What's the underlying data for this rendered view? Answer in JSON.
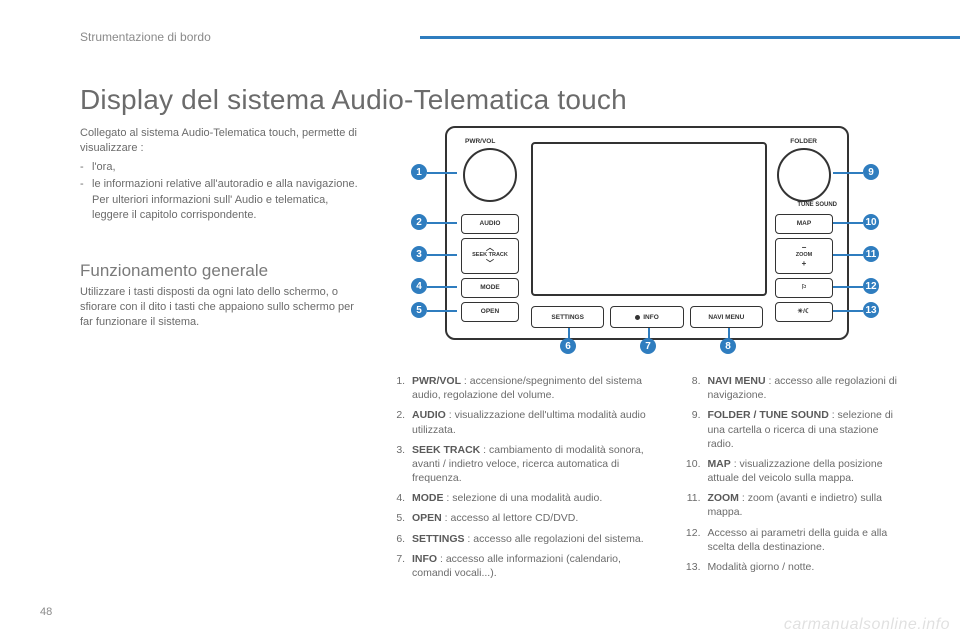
{
  "section_label": "Strumentazione di bordo",
  "page_number": "48",
  "watermark": "carmanualsonline.info",
  "title": "Display del sistema Audio-Telematica touch",
  "intro": {
    "lead": "Collegato al sistema Audio-Telematica touch, permette di visualizzare :",
    "bullets": [
      "l'ora,",
      "le informazioni relative all'autoradio e alla navigazione."
    ],
    "note": "Per ulteriori informazioni sull' Audio e telematica, leggere il capitolo corrispondente."
  },
  "sub": {
    "heading": "Funzionamento generale",
    "body": "Utilizzare i tasti disposti da ogni lato dello schermo, o sfiorare con il dito i tasti che appaiono sullo schermo per far funzionare il sistema."
  },
  "device": {
    "knob_left_label": "PWR/VOL",
    "knob_right_label": "FOLDER",
    "tune_label": "TUNE SOUND",
    "left_buttons": {
      "audio": "AUDIO",
      "seek_up": "︿",
      "seek_label": "SEEK TRACK",
      "seek_down": "﹀",
      "mode": "MODE",
      "open": "OPEN"
    },
    "right_buttons": {
      "map": "MAP",
      "zoom_minus": "−",
      "zoom_label": "ZOOM",
      "zoom_plus": "+",
      "guide": "⚐",
      "daynight": "☀/☾"
    },
    "bottom_buttons": {
      "settings": "SETTINGS",
      "info": "INFO",
      "navi": "NAVI MENU"
    },
    "callouts": [
      "1",
      "2",
      "3",
      "4",
      "5",
      "6",
      "7",
      "8",
      "9",
      "10",
      "11",
      "12",
      "13"
    ],
    "accent_color": "#2f7dbf"
  },
  "legend_left": [
    {
      "n": "1",
      "label": "PWR/VOL",
      "text": " : accensione/spegnimento del sistema audio, regolazione del volume."
    },
    {
      "n": "2",
      "label": "AUDIO",
      "text": " : visualizzazione dell'ultima modalità audio utilizzata."
    },
    {
      "n": "3",
      "label": "SEEK TRACK",
      "text": " : cambiamento di modalità sonora, avanti / indietro veloce, ricerca automatica di frequenza."
    },
    {
      "n": "4",
      "label": "MODE",
      "text": " : selezione di una modalità audio."
    },
    {
      "n": "5",
      "label": "OPEN",
      "text": " : accesso al lettore CD/DVD."
    },
    {
      "n": "6",
      "label": "SETTINGS",
      "text": " : accesso alle regolazioni del sistema."
    },
    {
      "n": "7",
      "label": "INFO",
      "text": " : accesso alle informazioni (calendario, comandi vocali...)."
    }
  ],
  "legend_right": [
    {
      "n": "8",
      "label": "NAVI MENU",
      "text": " : accesso alle regolazioni di navigazione."
    },
    {
      "n": "9",
      "label": "FOLDER / TUNE SOUND",
      "text": " : selezione di una cartella o ricerca di una stazione radio."
    },
    {
      "n": "10",
      "label": "MAP",
      "text": " : visualizzazione della posizione attuale del veicolo sulla mappa."
    },
    {
      "n": "11",
      "label": "ZOOM",
      "text": " : zoom (avanti e indietro) sulla mappa."
    },
    {
      "n": "12",
      "label": "",
      "text": "Accesso ai parametri della guida e alla scelta della destinazione."
    },
    {
      "n": "13",
      "label": "",
      "text": "Modalità giorno / notte."
    }
  ]
}
